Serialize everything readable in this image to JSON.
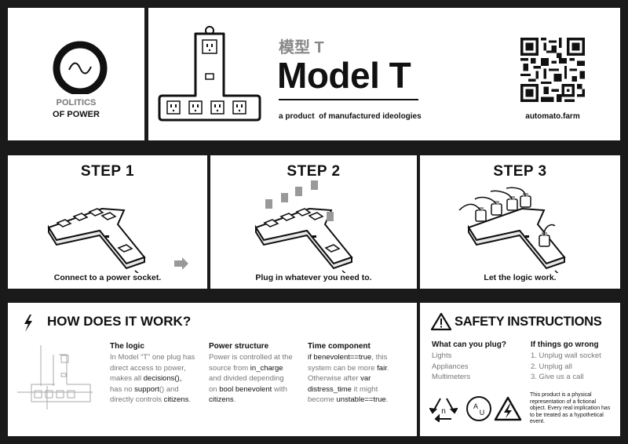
{
  "brand": {
    "line1": "POLITICS",
    "line2": "OF POWER"
  },
  "header": {
    "title_cn": "模型 T",
    "title": "Model T",
    "subtitle": "a product  of manufactured ideologies",
    "site": "automato.farm"
  },
  "steps": [
    {
      "title": "STEP 1",
      "caption": "Connect to a power socket."
    },
    {
      "title": "STEP 2",
      "caption": "Plug in whatever you need to."
    },
    {
      "title": "STEP 3",
      "caption": "Let the logic work."
    }
  ],
  "how": {
    "heading": "HOW DOES IT WORK?",
    "logic": {
      "title": "The logic",
      "t1": "In Model “T” one plug has",
      "t2": "direct access to power,",
      "t3a": "makes all ",
      "t3b": "decisions",
      "t3c": "(),",
      "t4a": "has no ",
      "t4b": "support",
      "t4c": "() and",
      "t5a": "directly controls ",
      "t5b": "citizens",
      "t5c": "."
    },
    "structure": {
      "title": "Power structure",
      "t1": "Power is controlled at the",
      "t2a": "source from ",
      "t2b": "in_charge",
      "t3": "and divided depending",
      "t4a": "on ",
      "t4b": "bool benevolent",
      "t4c": " with",
      "t5a": "citizens",
      "t5b": "."
    },
    "time": {
      "title": "Time component",
      "t1a": "if ",
      "t1b": "benevolent==true",
      "t1c": ", this",
      "t2a": "system can be more ",
      "t2b": "fair",
      "t2c": ".",
      "t3a": "Otherwise after ",
      "t3b": "var",
      "t4a": "distress_time",
      "t4b": " it might",
      "t5a": "become ",
      "t5b": "unstable==true",
      "t5c": "."
    }
  },
  "safety": {
    "heading": "SAFETY INSTRUCTIONS",
    "plug_title": "What can you plug?",
    "plug_items": [
      "Lights",
      "Appliances",
      "Multimeters"
    ],
    "wrong_title": "If things go wrong",
    "wrong_items": [
      "1. Unplug wall socket",
      "2. Unplug all",
      "3. Give us a call"
    ],
    "disclaimer1": "This product is a physical",
    "disclaimer2": "representation of a fictional",
    "disclaimer3": "object. Every real implication has",
    "disclaimer4": "to be treated as a hypothetical",
    "disclaimer5": "event.",
    "icon_recycle_letter": "n",
    "icon_circle_a": "A",
    "icon_circle_u": "U"
  },
  "colors": {
    "panel": "#ffffff",
    "background": "#1a1a1a",
    "ink": "#111111",
    "muted": "#777777",
    "accent": "#999999"
  }
}
